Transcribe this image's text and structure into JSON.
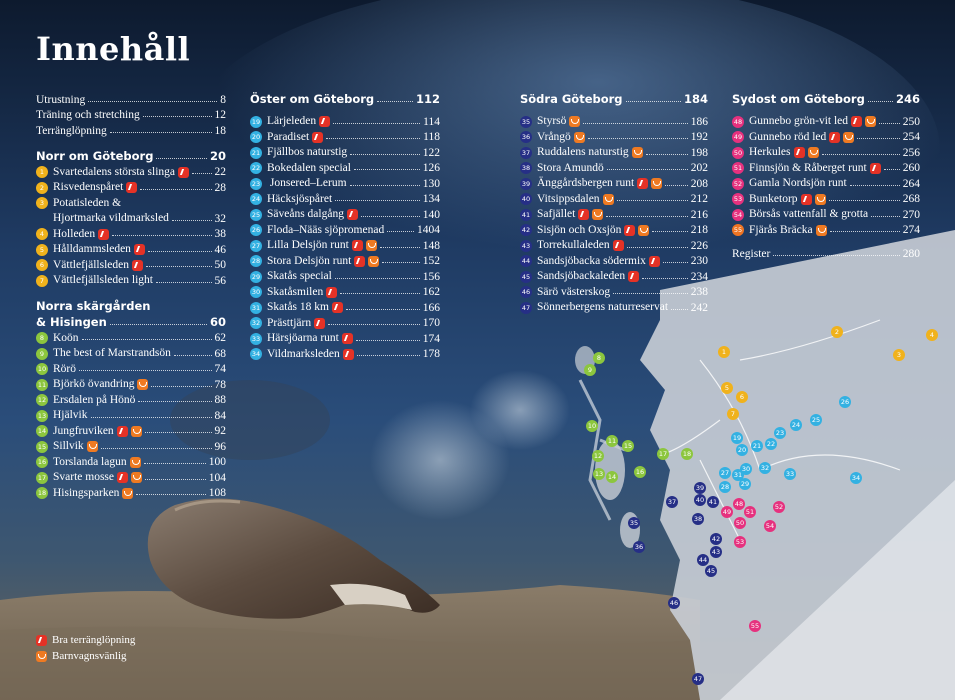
{
  "title": "Innehåll",
  "colors": {
    "yellow": "#f0b21c",
    "green": "#8cc63e",
    "cyan": "#33b1e2",
    "navy": "#262f86",
    "pink": "#e6317e",
    "orange": "#ee7423",
    "run": "#e53226",
    "pram": "#ef7a22"
  },
  "col1": {
    "intro": [
      {
        "label": "Utrustning",
        "page": "8"
      },
      {
        "label": "Träning och stretching",
        "page": "12"
      },
      {
        "label": "Terränglöpning",
        "page": "18"
      }
    ],
    "sec1": {
      "label": "Norr om Göteborg",
      "page": "20"
    },
    "sec1_items": [
      {
        "n": "1",
        "label": "Svartedalens största slinga",
        "page": "22",
        "icons": [
          "run"
        ]
      },
      {
        "n": "2",
        "label": "Risvedenspåret",
        "page": "28",
        "icons": [
          "run"
        ]
      },
      {
        "n": "3",
        "label": "Potatisleden &",
        "page": "",
        "icons": []
      },
      {
        "n": "",
        "label": "Hjortmarka vildmarksled",
        "page": "32",
        "icons": []
      },
      {
        "n": "4",
        "label": "Holleden",
        "page": "38",
        "icons": [
          "run"
        ]
      },
      {
        "n": "5",
        "label": "Hålldammsleden",
        "page": "46",
        "icons": [
          "run"
        ]
      },
      {
        "n": "6",
        "label": "Vättlefjällsleden",
        "page": "50",
        "icons": [
          "run"
        ]
      },
      {
        "n": "7",
        "label": "Vättlefjällsleden light",
        "page": "56",
        "icons": []
      }
    ],
    "sec2_line1": "Norra skärgården",
    "sec2": {
      "label": "& Hisingen",
      "page": "60"
    },
    "sec2_items": [
      {
        "n": "8",
        "label": "Koön",
        "page": "62",
        "icons": []
      },
      {
        "n": "9",
        "label": "The best of Marstrandsön",
        "page": "68",
        "icons": []
      },
      {
        "n": "10",
        "label": "Rörö",
        "page": "74",
        "icons": []
      },
      {
        "n": "11",
        "label": "Björkö övandring",
        "page": "78",
        "icons": [
          "pram"
        ]
      },
      {
        "n": "12",
        "label": "Ersdalen på Hönö",
        "page": "88",
        "icons": []
      },
      {
        "n": "13",
        "label": "Hjälvik",
        "page": "84",
        "icons": []
      },
      {
        "n": "14",
        "label": "Jungfruviken",
        "page": "92",
        "icons": [
          "run",
          "pram"
        ]
      },
      {
        "n": "15",
        "label": "Sillvik",
        "page": "96",
        "icons": [
          "pram"
        ]
      },
      {
        "n": "16",
        "label": "Torslanda lagun",
        "page": "100",
        "icons": [
          "pram"
        ]
      },
      {
        "n": "17",
        "label": "Svarte mosse",
        "page": "104",
        "icons": [
          "run",
          "pram"
        ]
      },
      {
        "n": "18",
        "label": "Hisingsparken",
        "page": "108",
        "icons": [
          "pram"
        ]
      }
    ]
  },
  "col2": {
    "sec": {
      "label": "Öster om Göteborg",
      "page": "112"
    },
    "items": [
      {
        "n": "19",
        "label": "Lärjeleden",
        "page": "114",
        "icons": [
          "run"
        ]
      },
      {
        "n": "20",
        "label": "Paradiset",
        "page": "118",
        "icons": [
          "run"
        ]
      },
      {
        "n": "21",
        "label": "Fjällbos naturstig",
        "page": "122",
        "icons": []
      },
      {
        "n": "22",
        "label": "Bokedalen special",
        "page": "126",
        "icons": []
      },
      {
        "n": "23",
        "label": " Jonsered–Lerum",
        "page": "130",
        "icons": []
      },
      {
        "n": "24",
        "label": "Häcksjöspåret",
        "page": "134",
        "icons": []
      },
      {
        "n": "25",
        "label": "Säveåns dalgång",
        "page": "140",
        "icons": [
          "run"
        ]
      },
      {
        "n": "26",
        "label": "Floda–Nääs sjöpromenad",
        "page": "1404",
        "icons": []
      },
      {
        "n": "27",
        "label": "Lilla Delsjön runt",
        "page": "148",
        "icons": [
          "run",
          "pram"
        ]
      },
      {
        "n": "28",
        "label": "Stora Delsjön runt",
        "page": "152",
        "icons": [
          "run",
          "pram"
        ]
      },
      {
        "n": "29",
        "label": "Skatås special",
        "page": "156",
        "icons": []
      },
      {
        "n": "30",
        "label": "Skatåsmilen",
        "page": "162",
        "icons": [
          "run"
        ]
      },
      {
        "n": "31",
        "label": "Skatås 18 km",
        "page": "166",
        "icons": [
          "run"
        ]
      },
      {
        "n": "32",
        "label": "Prästtjärn",
        "page": "170",
        "icons": [
          "run"
        ]
      },
      {
        "n": "33",
        "label": "Härsjöarna runt",
        "page": "174",
        "icons": [
          "run"
        ]
      },
      {
        "n": "34",
        "label": "Vildmarksleden",
        "page": "178",
        "icons": [
          "run"
        ]
      }
    ]
  },
  "col3": {
    "sec": {
      "label": "Södra Göteborg",
      "page": "184"
    },
    "items": [
      {
        "n": "35",
        "label": "Styrsö",
        "page": "186",
        "icons": [
          "pram"
        ]
      },
      {
        "n": "36",
        "label": "Vrångö",
        "page": "192",
        "icons": [
          "pram"
        ]
      },
      {
        "n": "37",
        "label": "Ruddalens naturstig",
        "page": "198",
        "icons": [
          "pram"
        ]
      },
      {
        "n": "38",
        "label": "Stora Amundö",
        "page": "202",
        "icons": []
      },
      {
        "n": "39",
        "label": "Änggårdsbergen runt",
        "page": "208",
        "icons": [
          "run",
          "pram"
        ]
      },
      {
        "n": "40",
        "label": "Vitsippsdalen",
        "page": "212",
        "icons": [
          "pram"
        ]
      },
      {
        "n": "41",
        "label": "Safjället",
        "page": "216",
        "icons": [
          "run",
          "pram"
        ]
      },
      {
        "n": "42",
        "label": "Sisjön och Oxsjön",
        "page": "218",
        "icons": [
          "run",
          "pram"
        ]
      },
      {
        "n": "43",
        "label": "Torrekullaleden",
        "page": "226",
        "icons": [
          "run"
        ]
      },
      {
        "n": "44",
        "label": "Sandsjöbacka södermix",
        "page": "230",
        "icons": [
          "run"
        ]
      },
      {
        "n": "45",
        "label": "Sandsjöbackaleden",
        "page": "234",
        "icons": [
          "run"
        ]
      },
      {
        "n": "46",
        "label": "Särö västerskog",
        "page": "238",
        "icons": []
      },
      {
        "n": "47",
        "label": "Sönnerbergens naturreservat",
        "page": "242",
        "icons": []
      }
    ]
  },
  "col4": {
    "sec": {
      "label": "Sydost om Göteborg",
      "page": "246"
    },
    "items": [
      {
        "n": "48",
        "label": "Gunnebo grön-vit led",
        "page": "250",
        "icons": [
          "run",
          "pram"
        ]
      },
      {
        "n": "49",
        "label": "Gunnebo röd led",
        "page": "254",
        "icons": [
          "run",
          "pram"
        ]
      },
      {
        "n": "50",
        "label": "Herkules",
        "page": "256",
        "icons": [
          "run",
          "pram"
        ]
      },
      {
        "n": "51",
        "label": "Finnsjön & Råberget runt",
        "page": "260",
        "icons": [
          "run"
        ]
      },
      {
        "n": "52",
        "label": "Gamla Nordsjön runt",
        "page": "264",
        "icons": []
      },
      {
        "n": "53",
        "label": "Bunketorp",
        "page": "268",
        "icons": [
          "run",
          "pram"
        ]
      },
      {
        "n": "54",
        "label": "Börsås vattenfall & grotta",
        "page": "270",
        "icons": []
      },
      {
        "n": "55",
        "label": "Fjärås Bräcka",
        "page": "274",
        "icons": [
          "pram"
        ]
      }
    ],
    "register": {
      "label": "Register",
      "page": "280"
    }
  },
  "legend": {
    "run_label": "Bra terränglöpning",
    "pram_label": "Barnvagnsvänlig"
  },
  "map_dots": [
    {
      "n": "1",
      "c": "yellow"
    },
    {
      "n": "2",
      "c": "yellow"
    },
    {
      "n": "3",
      "c": "yellow"
    },
    {
      "n": "4",
      "c": "yellow"
    },
    {
      "n": "5",
      "c": "yellow"
    },
    {
      "n": "6",
      "c": "yellow"
    },
    {
      "n": "7",
      "c": "yellow"
    },
    {
      "n": "8",
      "c": "green"
    },
    {
      "n": "9",
      "c": "green"
    },
    {
      "n": "10",
      "c": "green"
    },
    {
      "n": "11",
      "c": "green"
    },
    {
      "n": "12",
      "c": "green"
    },
    {
      "n": "13",
      "c": "green"
    },
    {
      "n": "14",
      "c": "green"
    },
    {
      "n": "15",
      "c": "green"
    },
    {
      "n": "16",
      "c": "green"
    },
    {
      "n": "17",
      "c": "green"
    },
    {
      "n": "18",
      "c": "green"
    },
    {
      "n": "19",
      "c": "cyan"
    },
    {
      "n": "20",
      "c": "cyan"
    },
    {
      "n": "21",
      "c": "cyan"
    },
    {
      "n": "22",
      "c": "cyan"
    },
    {
      "n": "23",
      "c": "cyan"
    },
    {
      "n": "24",
      "c": "cyan"
    },
    {
      "n": "25",
      "c": "cyan"
    },
    {
      "n": "26",
      "c": "cyan"
    },
    {
      "n": "27",
      "c": "cyan"
    },
    {
      "n": "28",
      "c": "cyan"
    },
    {
      "n": "29",
      "c": "cyan"
    },
    {
      "n": "30",
      "c": "cyan"
    },
    {
      "n": "31",
      "c": "cyan"
    },
    {
      "n": "32",
      "c": "cyan"
    },
    {
      "n": "33",
      "c": "cyan"
    },
    {
      "n": "34",
      "c": "cyan"
    },
    {
      "n": "35",
      "c": "navy"
    },
    {
      "n": "36",
      "c": "navy"
    },
    {
      "n": "37",
      "c": "navy"
    },
    {
      "n": "38",
      "c": "navy"
    },
    {
      "n": "39",
      "c": "navy"
    },
    {
      "n": "40",
      "c": "navy"
    },
    {
      "n": "41",
      "c": "navy"
    },
    {
      "n": "42",
      "c": "navy"
    },
    {
      "n": "43",
      "c": "navy"
    },
    {
      "n": "44",
      "c": "navy"
    },
    {
      "n": "45",
      "c": "navy"
    },
    {
      "n": "46",
      "c": "navy"
    },
    {
      "n": "47",
      "c": "navy"
    },
    {
      "n": "48",
      "c": "pink"
    },
    {
      "n": "49",
      "c": "pink"
    },
    {
      "n": "50",
      "c": "pink"
    },
    {
      "n": "51",
      "c": "pink"
    },
    {
      "n": "52",
      "c": "pink"
    },
    {
      "n": "53",
      "c": "pink"
    },
    {
      "n": "54",
      "c": "pink"
    },
    {
      "n": "55",
      "c": "pink"
    }
  ]
}
